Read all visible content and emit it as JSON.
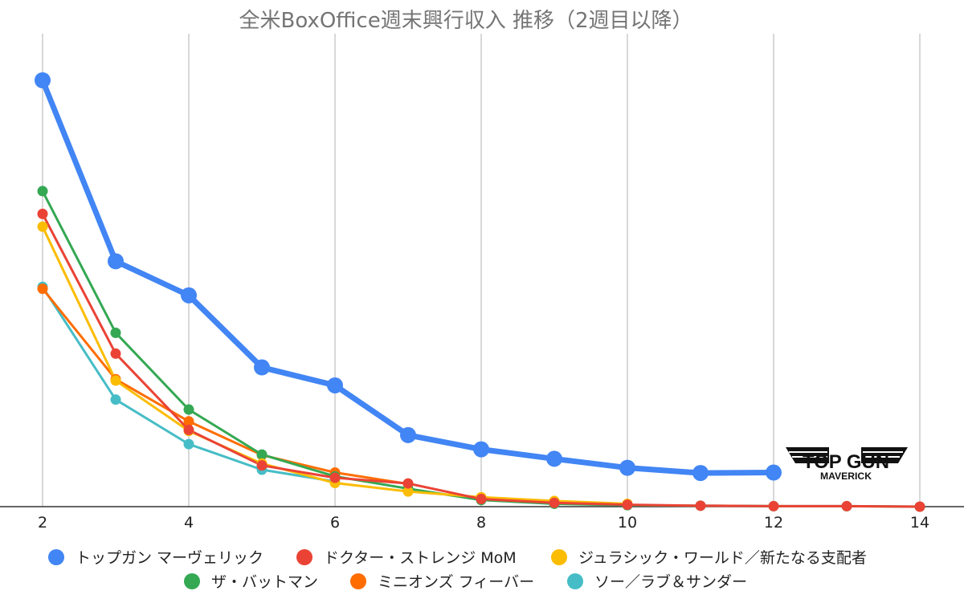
{
  "chart_data": {
    "type": "line",
    "title": "全米BoxOffice週末興行収入 推移（2週目以降）",
    "xlabel": "",
    "ylabel": "",
    "x_ticks": [
      2,
      4,
      6,
      8,
      10,
      12,
      14
    ],
    "xlim": [
      2,
      14
    ],
    "ylim": [
      0,
      90
    ],
    "grid": "vertical",
    "legend_position": "bottom",
    "logo_text": [
      "TOP GUN",
      "MAVERICK"
    ],
    "series": [
      {
        "name": "トップガン マーヴェリック",
        "color": "#4285f4",
        "x": [
          2,
          3,
          4,
          5,
          6,
          7,
          8,
          9,
          10,
          11,
          12
        ],
        "y": [
          90.0,
          51.8,
          44.6,
          29.4,
          25.6,
          15.1,
          12.1,
          10.1,
          8.2,
          7.1,
          7.2
        ]
      },
      {
        "name": "ドクター・ストレンジ MoM",
        "color": "#ea4335",
        "x": [
          2,
          3,
          4,
          5,
          6,
          7,
          8,
          9,
          10,
          11,
          12,
          13,
          14
        ],
        "y": [
          61.8,
          32.3,
          16.2,
          8.7,
          6.1,
          4.9,
          1.6,
          0.8,
          0.4,
          0.2,
          0.1,
          0.1,
          0.0
        ]
      },
      {
        "name": "ジュラシック・ワールド／新たなる支配者",
        "color": "#fbbc04",
        "x": [
          2,
          3,
          4,
          5,
          6,
          7,
          8,
          9,
          10
        ],
        "y": [
          59.1,
          26.6,
          16.0,
          9.1,
          5.0,
          3.2,
          2.0,
          1.2,
          0.6
        ]
      },
      {
        "name": "ザ・バットマン",
        "color": "#34a853",
        "x": [
          2,
          3,
          4,
          5,
          6,
          7,
          8,
          9,
          10,
          11,
          12,
          13,
          14
        ],
        "y": [
          66.6,
          36.7,
          20.5,
          11.0,
          6.4,
          3.8,
          1.4,
          0.6,
          0.3,
          0.2,
          0.1,
          0.1,
          0.0
        ]
      },
      {
        "name": "ミニオンズ フィーバー",
        "color": "#ff6d01",
        "x": [
          2,
          3,
          4,
          5,
          6,
          7
        ],
        "y": [
          46.0,
          26.9,
          18.0,
          10.9,
          7.2,
          4.8
        ]
      },
      {
        "name": "ソー／ラブ＆サンダー",
        "color": "#46bdc6",
        "x": [
          2,
          3,
          4,
          5,
          6
        ],
        "y": [
          46.4,
          22.6,
          13.2,
          7.8,
          5.3
        ]
      }
    ]
  }
}
